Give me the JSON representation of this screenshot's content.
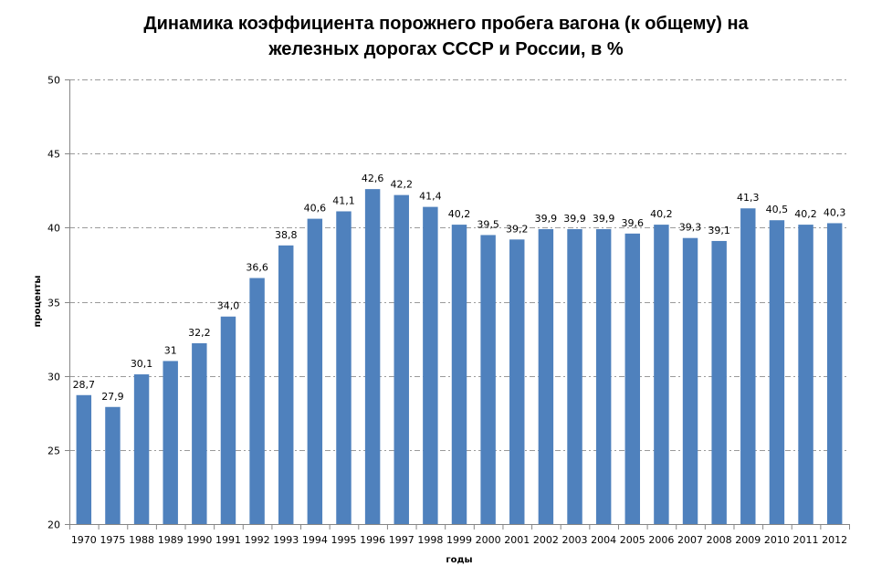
{
  "chart_data": {
    "type": "bar",
    "title_lines": [
      "Динамика коэффициента  порожнего пробега вагона (к общему) на",
      "железных дорогах СССР и России, в %"
    ],
    "xlabel": "годы",
    "ylabel": "проценты",
    "ylim": [
      20,
      50
    ],
    "yticks": [
      20,
      25,
      30,
      35,
      40,
      45,
      50
    ],
    "grid": true,
    "legend": "none",
    "bar_color": "#4F81BD",
    "categories": [
      "1970",
      "1975",
      "1988",
      "1989",
      "1990",
      "1991",
      "1992",
      "1993",
      "1994",
      "1995",
      "1996",
      "1997",
      "1998",
      "1999",
      "2000",
      "2001",
      "2002",
      "2003",
      "2004",
      "2005",
      "2006",
      "2007",
      "2008",
      "2009",
      "2010",
      "2011",
      "2012"
    ],
    "values": [
      28.7,
      27.9,
      30.1,
      31,
      32.2,
      34.0,
      36.6,
      38.8,
      40.6,
      41.1,
      42.6,
      42.2,
      41.4,
      40.2,
      39.5,
      39.2,
      39.9,
      39.9,
      39.9,
      39.6,
      40.2,
      39.3,
      39.1,
      41.3,
      40.5,
      40.2,
      40.3
    ],
    "data_labels": [
      "28,7",
      "27,9",
      "30,1",
      "31",
      "32,2",
      "34,0",
      "36,6",
      "38,8",
      "40,6",
      "41,1",
      "42,6",
      "42,2",
      "41,4",
      "40,2",
      "39,5",
      "39,2",
      "39,9",
      "39,9",
      "39,9",
      "39,6",
      "40,2",
      "39,3",
      "39,1",
      "41,3",
      "40,5",
      "40,2",
      "40,3"
    ]
  }
}
